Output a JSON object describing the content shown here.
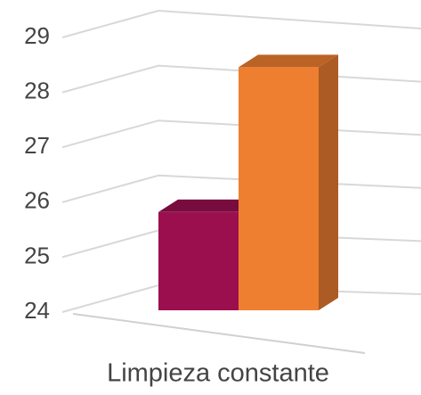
{
  "chart_data": {
    "type": "bar3d",
    "categories": [
      "Limpieza constante"
    ],
    "series": [
      {
        "color": "#9b0f4f",
        "values": [
          25.9
        ]
      },
      {
        "color": "#ee7f30",
        "values": [
          28.7
        ]
      }
    ],
    "ylim": [
      24,
      29
    ],
    "yticks": [
      24,
      25,
      26,
      27,
      28,
      29
    ],
    "grid": true
  }
}
